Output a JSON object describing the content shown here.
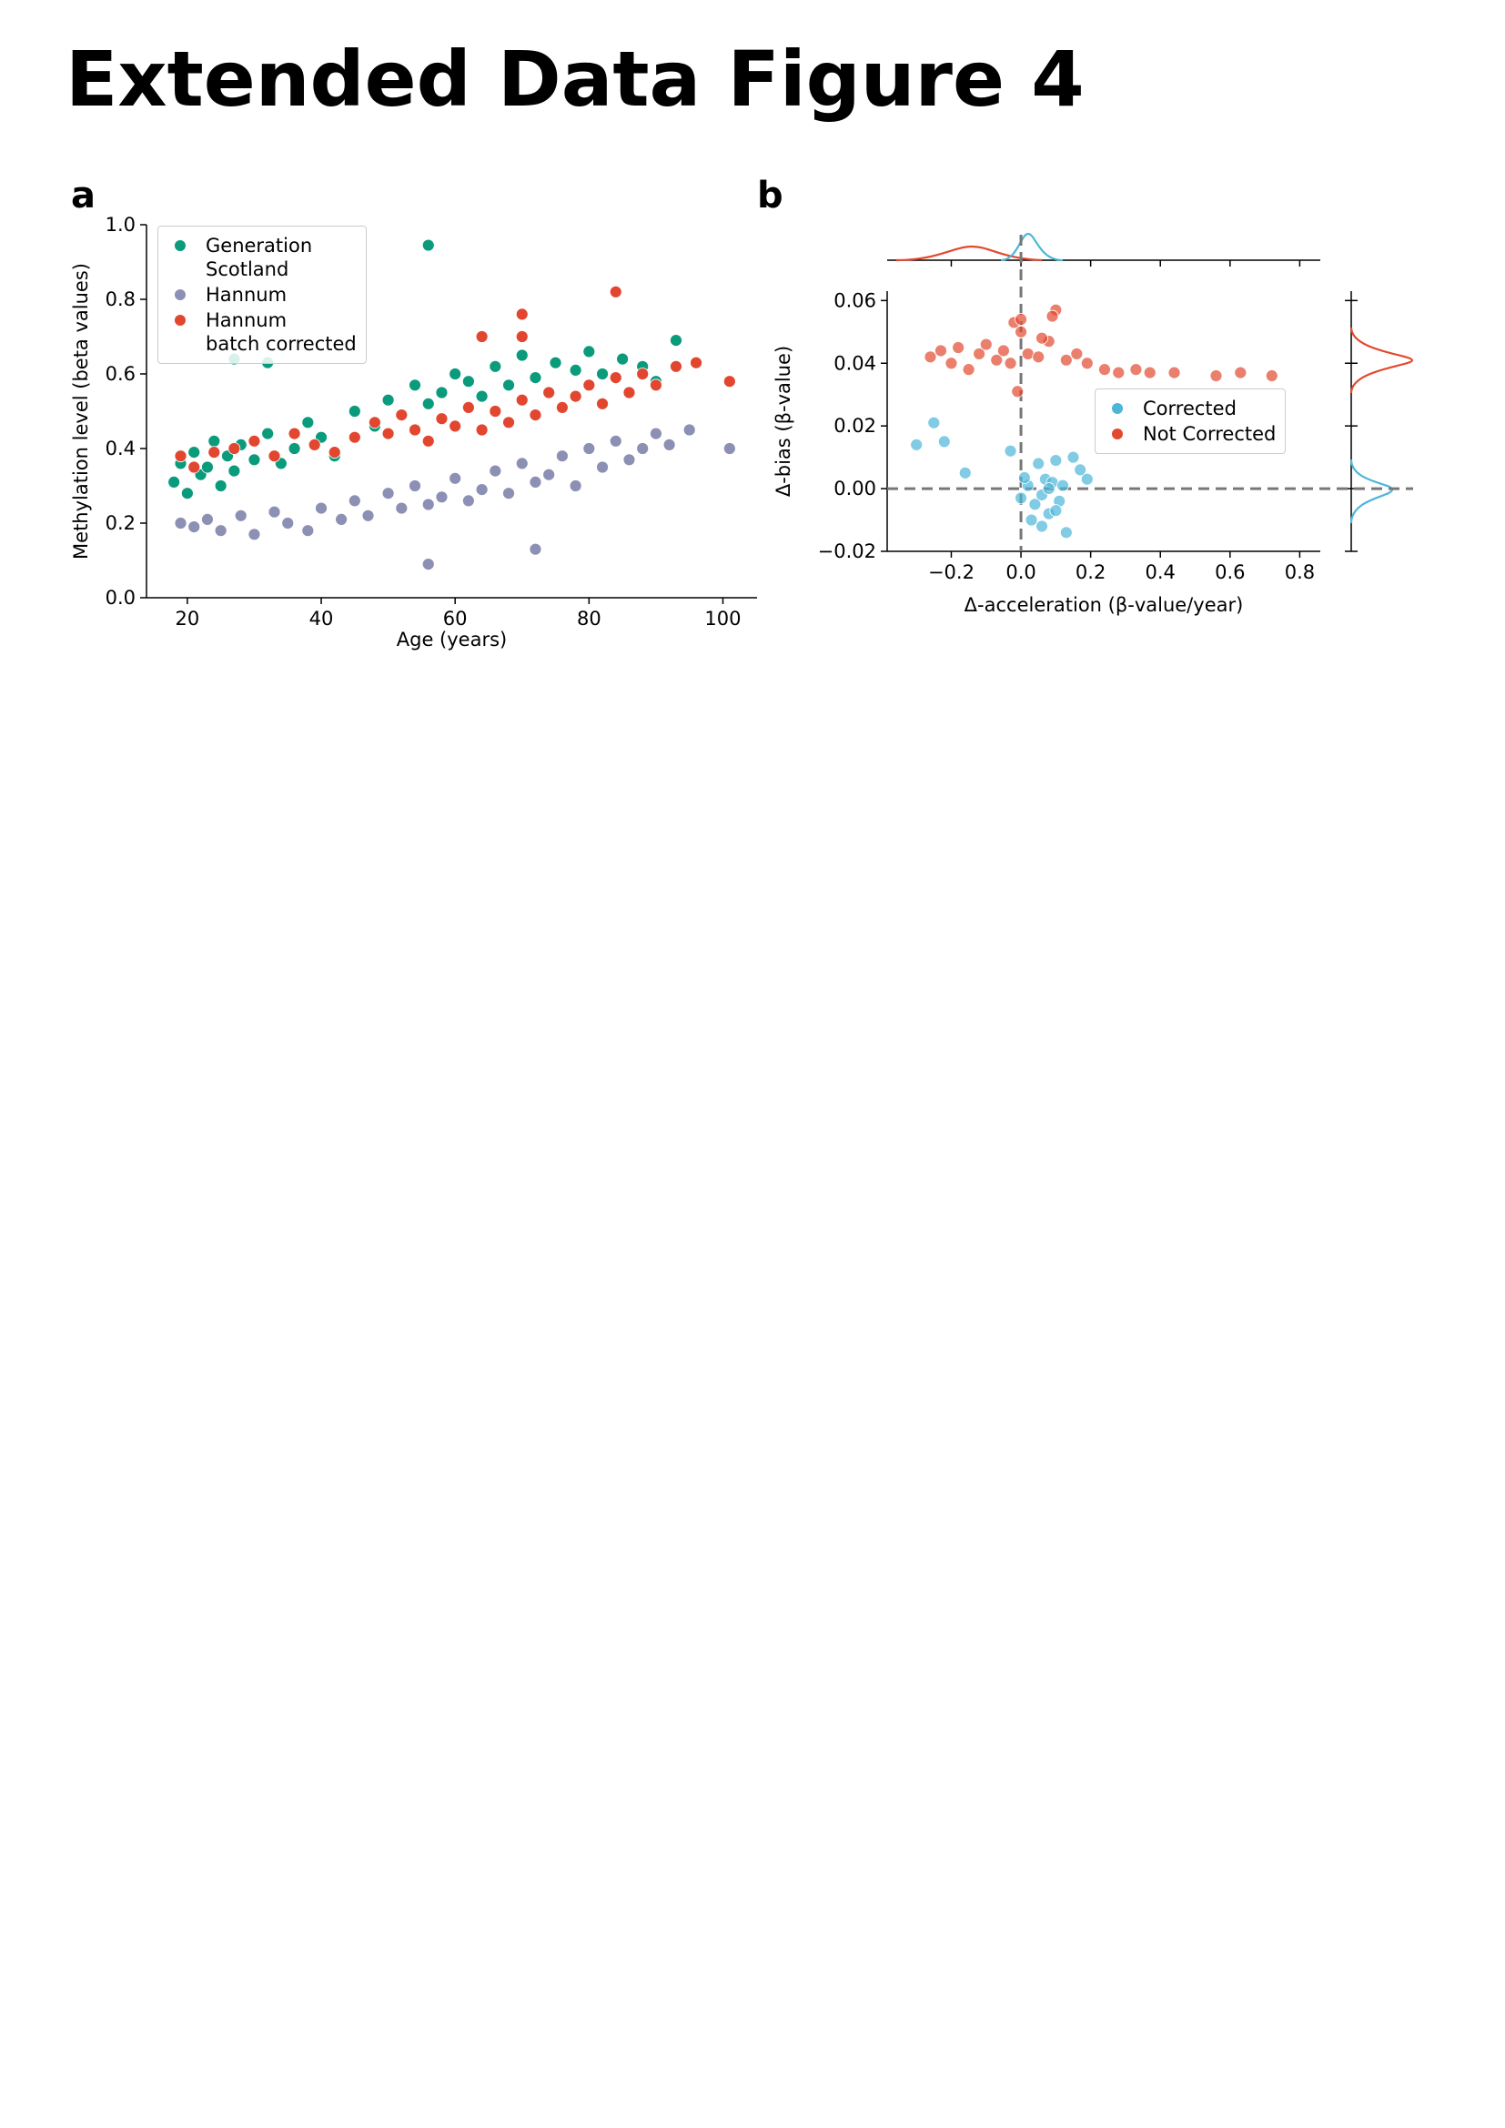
{
  "title": "Extended Data Figure 4",
  "chart_data": [
    {
      "type": "scatter",
      "panel": "a",
      "xlabel": "Age (years)",
      "ylabel": "Methylation level (beta values)",
      "xlim": [
        13.9,
        105.1
      ],
      "ylim": [
        0,
        1.0
      ],
      "xticks": [
        20,
        40,
        60,
        80,
        100
      ],
      "yticks": [
        {
          "value": 0,
          "label": "0.0"
        },
        0.2,
        0.4,
        0.6,
        0.8,
        {
          "value": 1.0,
          "label": "1.0"
        }
      ],
      "legend": "upper left",
      "series": [
        {
          "name": "Generation\nScotland",
          "color": "#0a9b7c",
          "x": [
            18,
            19,
            20,
            21,
            22,
            23,
            24,
            25,
            26,
            27,
            28,
            30,
            32,
            34,
            36,
            38,
            40,
            42,
            45,
            48,
            50,
            52,
            54,
            56,
            58,
            60,
            62,
            64,
            66,
            68,
            70,
            72,
            75,
            78,
            80,
            82,
            85,
            88,
            90,
            93,
            27,
            32,
            56
          ],
          "y": [
            0.31,
            0.36,
            0.28,
            0.39,
            0.33,
            0.35,
            0.42,
            0.3,
            0.38,
            0.34,
            0.41,
            0.37,
            0.44,
            0.36,
            0.4,
            0.47,
            0.43,
            0.38,
            0.5,
            0.46,
            0.53,
            0.49,
            0.57,
            0.52,
            0.55,
            0.6,
            0.58,
            0.54,
            0.62,
            0.57,
            0.65,
            0.59,
            0.63,
            0.61,
            0.66,
            0.6,
            0.64,
            0.62,
            0.58,
            0.69,
            0.64,
            0.63,
            0.945
          ]
        },
        {
          "name": "Hannum",
          "color": "#8b90b4",
          "x": [
            19,
            21,
            23,
            25,
            28,
            30,
            33,
            35,
            38,
            40,
            43,
            45,
            47,
            50,
            52,
            54,
            56,
            58,
            60,
            62,
            64,
            66,
            68,
            70,
            72,
            74,
            76,
            78,
            80,
            82,
            84,
            86,
            88,
            90,
            92,
            95,
            101,
            56,
            72
          ],
          "y": [
            0.2,
            0.19,
            0.21,
            0.18,
            0.22,
            0.17,
            0.23,
            0.2,
            0.18,
            0.24,
            0.21,
            0.26,
            0.22,
            0.28,
            0.24,
            0.3,
            0.25,
            0.27,
            0.32,
            0.26,
            0.29,
            0.34,
            0.28,
            0.36,
            0.31,
            0.33,
            0.38,
            0.3,
            0.4,
            0.35,
            0.42,
            0.37,
            0.4,
            0.44,
            0.41,
            0.45,
            0.4,
            0.09,
            0.13
          ]
        },
        {
          "name": "Hannum\nbatch corrected",
          "color": "#e2462f",
          "x": [
            19,
            21,
            24,
            27,
            30,
            33,
            36,
            39,
            42,
            45,
            48,
            50,
            52,
            54,
            56,
            58,
            60,
            62,
            64,
            66,
            68,
            70,
            72,
            74,
            76,
            78,
            80,
            82,
            84,
            86,
            88,
            90,
            93,
            96,
            101,
            84,
            64,
            70,
            70
          ],
          "y": [
            0.38,
            0.35,
            0.39,
            0.4,
            0.42,
            0.38,
            0.44,
            0.41,
            0.39,
            0.43,
            0.47,
            0.44,
            0.49,
            0.45,
            0.42,
            0.48,
            0.46,
            0.51,
            0.45,
            0.5,
            0.47,
            0.53,
            0.49,
            0.55,
            0.51,
            0.54,
            0.57,
            0.52,
            0.59,
            0.55,
            0.6,
            0.57,
            0.62,
            0.63,
            0.58,
            0.82,
            0.7,
            0.7,
            0.76
          ]
        }
      ]
    },
    {
      "type": "scatter",
      "panel": "b",
      "xlabel": "Δ-acceleration (β-value/year)",
      "ylabel": "Δ-bias (β-value)",
      "xlim": [
        -0.384,
        0.859
      ],
      "ylim": [
        -0.02,
        0.063
      ],
      "xticks": [
        {
          "value": -0.2,
          "label": "−0.2"
        },
        {
          "value": 0,
          "label": "0.0"
        },
        0.2,
        0.4,
        0.6,
        0.8
      ],
      "yticks": [
        {
          "value": -0.02,
          "label": "−0.02"
        },
        {
          "value": 0,
          "label": "0.00"
        },
        0.02,
        0.04,
        0.06
      ],
      "hlines": [
        0
      ],
      "vlines": [
        0
      ],
      "legend": "center right",
      "series": [
        {
          "name": "Corrected",
          "color": "#4cb6d8",
          "x": [
            -0.3,
            -0.25,
            -0.22,
            -0.16,
            -0.03,
            0.0,
            0.02,
            0.04,
            0.05,
            0.06,
            0.07,
            0.08,
            0.09,
            0.1,
            0.11,
            0.12,
            0.13,
            0.15,
            0.17,
            0.19,
            0.03,
            0.06,
            0.1,
            0.01,
            0.08
          ],
          "y": [
            0.014,
            0.021,
            0.015,
            0.005,
            0.012,
            -0.003,
            0.001,
            -0.005,
            0.008,
            -0.002,
            0.003,
            -0.008,
            0.002,
            0.009,
            -0.004,
            0.001,
            -0.014,
            0.01,
            0.006,
            0.003,
            -0.01,
            -0.012,
            -0.007,
            0.0035,
            0.0
          ]
        },
        {
          "name": "Not Corrected",
          "color": "#e3492f",
          "x": [
            -0.26,
            -0.23,
            -0.2,
            -0.18,
            -0.15,
            -0.12,
            -0.1,
            -0.07,
            -0.05,
            -0.03,
            0.0,
            0.02,
            0.05,
            0.08,
            0.1,
            0.13,
            0.16,
            0.19,
            0.24,
            0.28,
            0.33,
            0.37,
            0.44,
            0.56,
            0.63,
            0.72,
            -0.02,
            0.06,
            0.09,
            -0.01,
            0.0
          ],
          "y": [
            0.042,
            0.044,
            0.04,
            0.045,
            0.038,
            0.043,
            0.046,
            0.041,
            0.044,
            0.04,
            0.05,
            0.043,
            0.042,
            0.047,
            0.057,
            0.041,
            0.043,
            0.04,
            0.038,
            0.037,
            0.038,
            0.037,
            0.037,
            0.036,
            0.037,
            0.036,
            0.053,
            0.048,
            0.055,
            0.031,
            0.054
          ]
        }
      ]
    }
  ]
}
